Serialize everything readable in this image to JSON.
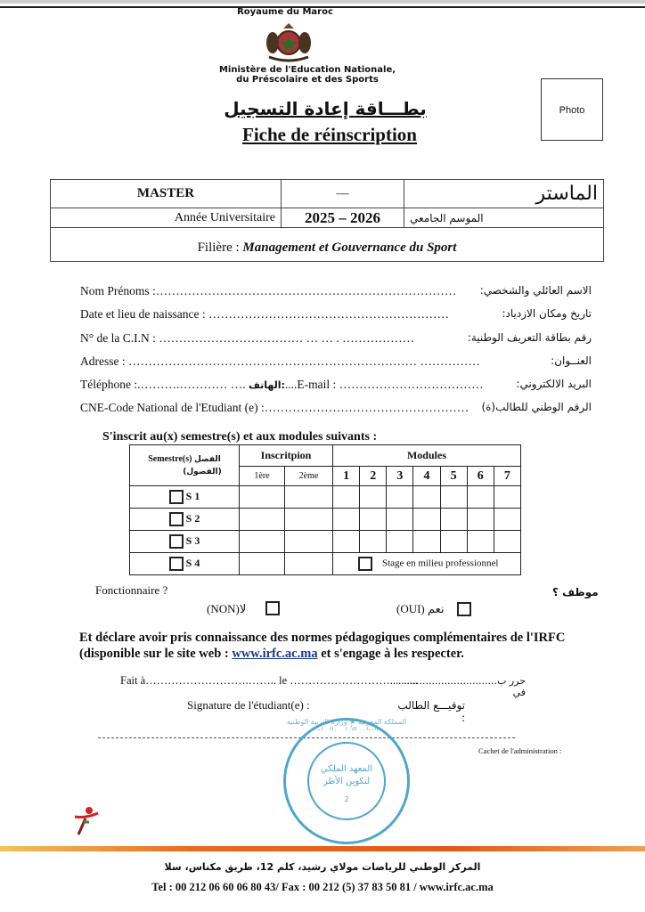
{
  "header": {
    "country": "Royaume du Maroc",
    "ministry_line1": "Ministère de l'Education Nationale,",
    "ministry_line2": "du Préscolaire et des Sports",
    "title_ar": "بطـــاقة إعادة التسجيل",
    "title_fr": "Fiche de réinscription",
    "photo_label": "Photo"
  },
  "program": {
    "level_fr": "MASTER",
    "separator": "—",
    "level_ar": "الماستر",
    "year_label_fr": "Année Universitaire",
    "year_value": "2025 – 2026",
    "year_label_ar": "الموسم الجامعي",
    "filiere_label": "Filière :",
    "filiere_value": "Management et Gouvernance du Sport"
  },
  "fields": [
    {
      "fr": "Nom Prénoms :…………………………………………………………………",
      "ar": "الاسم العائلي والشخصي:"
    },
    {
      "fr": "Date et lieu de naissance : ……………………………………………………",
      "ar": "تاريخ ومكان الازدياد:"
    },
    {
      "fr": "N° de la C.I.N : ……………………………… … … . ………………",
      "ar": "رقم بطاقة التعريف الوطنية:"
    },
    {
      "fr": "Adresse : ……………………………………………………………… ……………",
      "ar": "العنــوان:"
    },
    {
      "fr": "Téléphone :.……….………… ….",
      "mid": "الهاتف:",
      "fr2": "....E-mail : ………………………………",
      "ar": "البريد الالكتروني:"
    },
    {
      "fr": "CNE-Code National de l'Etudiant (e) :……………………………………………",
      "ar": "الرقم الوطني للطالب(ة)"
    }
  ],
  "modules_section": {
    "heading": "S'inscrit au(x) semestre(s) et aux modules suivants :",
    "semester_header_fr": "Semestre(s)",
    "semester_header_ar1": "الفصل",
    "semester_header_ar2": "(الفصول)",
    "inscription_header": "Inscritpion",
    "inscription_cols": [
      "1ère",
      "2ème"
    ],
    "modules_header": "Modules",
    "module_numbers": [
      "1",
      "2",
      "3",
      "4",
      "5",
      "6",
      "7"
    ],
    "semesters": [
      "S 1",
      "S 2",
      "S 3",
      "S 4"
    ],
    "stage_label": "Stage en milieu professionnel"
  },
  "fonctionnaire": {
    "question_fr": "Fonctionnaire ?",
    "question_ar": "موظف ؟",
    "non_label": "(NON)لا",
    "oui_label": "(OUI) نعم"
  },
  "declaration": {
    "line1": "Et déclare avoir pris connaissance des normes pédagogiques complémentaires de l'IRFC",
    "line2_before": "(disponible sur le site web :",
    "link": "www.irfc.ac.ma",
    "line2_after": "et s'engage à les respecter."
  },
  "signature": {
    "fait_fr": "Fait à……………………….…….. le ………………………..........",
    "fait_ar": "حرر ب.............................. في",
    "signature_fr": "Signature de l'étudiant(e) :",
    "signature_ar": "توقيـــع الطالب :",
    "cachet": "Cachet de l'administration :"
  },
  "stamp": {
    "outer_text": "المملكة المغربية ★ وزارة التربية الوطنية والتعليم الأولي والرياضة",
    "inner_line1": "المعهد الملكي",
    "inner_line2": "لتكوين الأطر",
    "number": "2",
    "color": "#4fa6cf"
  },
  "footer": {
    "address_ar": "المركز الوطني للرياضات مولاي رشيد، كلم 12، طريق مكناس، سلا",
    "contact": "Tel : 00 212 06 60 06 80 43/ Fax : 00 212 (5) 37 83 50 81 / www.irfc.ac.ma",
    "band_color": "#e96b1c"
  }
}
